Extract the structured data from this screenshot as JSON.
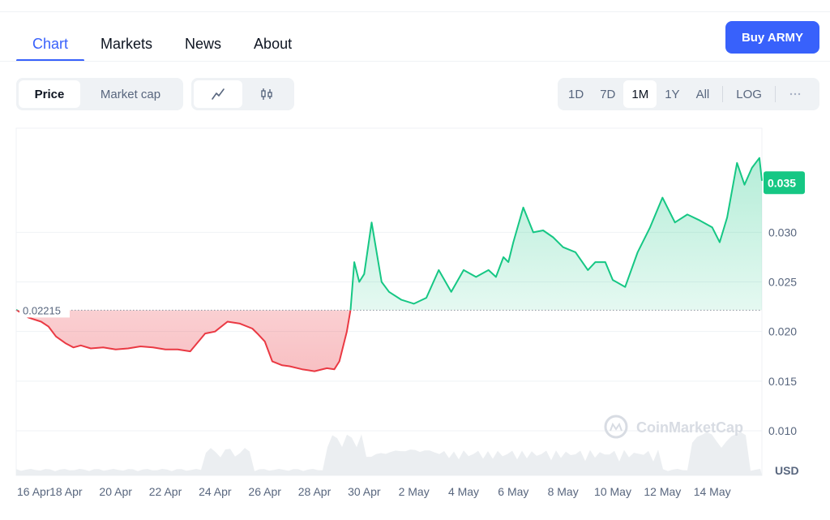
{
  "tabs": [
    {
      "label": "Chart",
      "active": true
    },
    {
      "label": "Markets",
      "active": false
    },
    {
      "label": "News",
      "active": false
    },
    {
      "label": "About",
      "active": false
    }
  ],
  "buy_button": {
    "label": "Buy ARMY"
  },
  "chart_controls": {
    "metric_options": [
      {
        "label": "Price",
        "active": true
      },
      {
        "label": "Market cap",
        "active": false
      }
    ],
    "chart_styles": [
      {
        "icon": "line-chart-icon",
        "active": true
      },
      {
        "icon": "candlestick-icon",
        "active": false
      }
    ],
    "ranges": [
      {
        "label": "1D",
        "active": false
      },
      {
        "label": "7D",
        "active": false
      },
      {
        "label": "1M",
        "active": true
      },
      {
        "label": "1Y",
        "active": false
      },
      {
        "label": "All",
        "active": false
      }
    ],
    "scale_label": "LOG",
    "more_icon": "more-dots-icon"
  },
  "colors": {
    "accent": "#3861fb",
    "up": "#16c784",
    "down": "#ea3943",
    "axis_text": "#58667e",
    "grid": "#eff2f5"
  },
  "chart_data": {
    "type": "area",
    "x_tick_labels": [
      "16 Apr",
      "18 Apr",
      "20 Apr",
      "22 Apr",
      "24 Apr",
      "26 Apr",
      "28 Apr",
      "30 Apr",
      "2 May",
      "4 May",
      "6 May",
      "8 May",
      "10 May",
      "12 May",
      "14 May"
    ],
    "x_range_days": [
      0,
      30
    ],
    "y_ticks": [
      0.01,
      0.015,
      0.02,
      0.025,
      0.03
    ],
    "y_tick_labels": [
      "0.010",
      "0.015",
      "0.020",
      "0.025",
      "0.030"
    ],
    "ylim": [
      0.0055,
      0.0405
    ],
    "yunit": "USD",
    "baseline": {
      "value": 0.02215,
      "label": "0.02215"
    },
    "current_price": {
      "value": 0.035,
      "label": "0.035"
    },
    "watermark": "CoinMarketCap",
    "grid": true,
    "series": [
      {
        "x": [
          0,
          0.5,
          1,
          1.3,
          1.6,
          2,
          2.3,
          2.6,
          3,
          3.5,
          4,
          4.5,
          5,
          5.5,
          6,
          6.5,
          7,
          7.3,
          7.6,
          8,
          8.5,
          9,
          9.5,
          9.7,
          10,
          10.3,
          10.7,
          11,
          11.5,
          12,
          12.5,
          12.8,
          13,
          13.3,
          13.45,
          13.6,
          13.8,
          14,
          14.3,
          14.7,
          15,
          15.5,
          16,
          16.5,
          17,
          17.5,
          18,
          18.5,
          19,
          19.3,
          19.6,
          19.8,
          20,
          20.4,
          20.8,
          21.2,
          21.6,
          22,
          22.5,
          23,
          23.3,
          23.7,
          24,
          24.5,
          25,
          25.5,
          26,
          26.5,
          27,
          27.5,
          28,
          28.3,
          28.6,
          29,
          29.3,
          29.6,
          29.9,
          30
        ],
        "y": [
          0.0222,
          0.0214,
          0.021,
          0.0205,
          0.0195,
          0.0188,
          0.0184,
          0.0186,
          0.0183,
          0.0184,
          0.0182,
          0.0183,
          0.0185,
          0.0184,
          0.0182,
          0.0182,
          0.018,
          0.0189,
          0.0198,
          0.02,
          0.021,
          0.0208,
          0.0203,
          0.0198,
          0.019,
          0.017,
          0.0166,
          0.0165,
          0.0162,
          0.016,
          0.0163,
          0.0162,
          0.017,
          0.02,
          0.0222,
          0.027,
          0.025,
          0.0258,
          0.031,
          0.025,
          0.024,
          0.0232,
          0.0228,
          0.0234,
          0.0262,
          0.024,
          0.0262,
          0.0255,
          0.0262,
          0.0255,
          0.0275,
          0.027,
          0.029,
          0.0325,
          0.03,
          0.0302,
          0.0295,
          0.0285,
          0.028,
          0.0262,
          0.027,
          0.027,
          0.0252,
          0.0245,
          0.028,
          0.0305,
          0.0335,
          0.031,
          0.0318,
          0.0312,
          0.0305,
          0.029,
          0.0315,
          0.037,
          0.0348,
          0.0365,
          0.0375,
          0.0352
        ]
      }
    ]
  }
}
